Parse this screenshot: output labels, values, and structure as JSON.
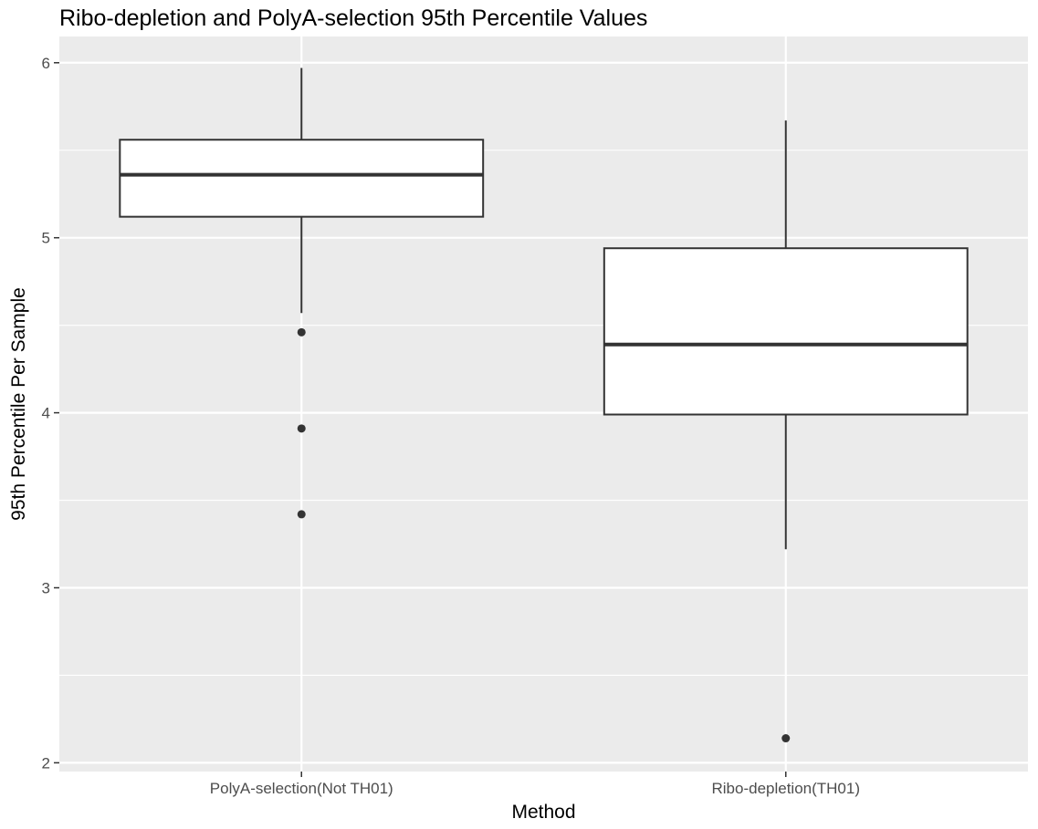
{
  "chart_data": {
    "type": "boxplot",
    "title": "Ribo-depletion and PolyA-selection 95th Percentile Values",
    "xlabel": "Method",
    "ylabel": "95th Percentile Per Sample",
    "ylim": [
      1.95,
      6.15
    ],
    "yticks": [
      2,
      3,
      4,
      5,
      6
    ],
    "grid": true,
    "categories": [
      "PolyA-selection(Not TH01)",
      "Ribo-depletion(TH01)"
    ],
    "boxes": [
      {
        "category": "PolyA-selection(Not TH01)",
        "whisker_low": 4.57,
        "q1": 5.12,
        "median": 5.36,
        "q3": 5.56,
        "whisker_high": 5.97,
        "outliers": [
          4.46,
          3.91,
          3.42
        ]
      },
      {
        "category": "Ribo-depletion(TH01)",
        "whisker_low": 3.22,
        "q1": 3.99,
        "median": 4.39,
        "q3": 4.94,
        "whisker_high": 5.67,
        "outliers": [
          2.14
        ]
      }
    ],
    "colors": {
      "panel": "#EBEBEB",
      "grid": "#FFFFFF",
      "box_fill": "#FFFFFF",
      "box_line": "#333333",
      "outlier": "#333333",
      "tick_text": "#4D4D4D",
      "axis_text": "#000000"
    }
  }
}
